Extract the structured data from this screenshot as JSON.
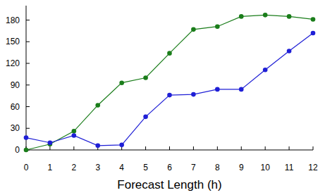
{
  "chart_data": {
    "type": "line",
    "x_label": "Forecast Length (h)",
    "x": [
      0,
      1,
      2,
      3,
      4,
      5,
      6,
      7,
      8,
      9,
      10,
      11,
      12
    ],
    "series": [
      {
        "color": "#1a7d1a",
        "marker": "circle",
        "values": [
          0,
          8,
          26,
          62,
          93,
          100,
          134,
          167,
          171,
          185,
          187,
          185,
          181
        ]
      },
      {
        "color": "#1f1fd6",
        "marker": "circle",
        "values": [
          17,
          10,
          20,
          6,
          7,
          46,
          76,
          77,
          84,
          84,
          111,
          137,
          162
        ]
      }
    ],
    "xlim": [
      0,
      12
    ],
    "xticks": [
      0,
      1,
      2,
      3,
      4,
      5,
      6,
      7,
      8,
      9,
      10,
      11,
      12
    ],
    "ylim": [
      0,
      200
    ],
    "yticks": [
      0,
      30,
      60,
      90,
      120,
      150,
      180
    ],
    "grid": false
  }
}
